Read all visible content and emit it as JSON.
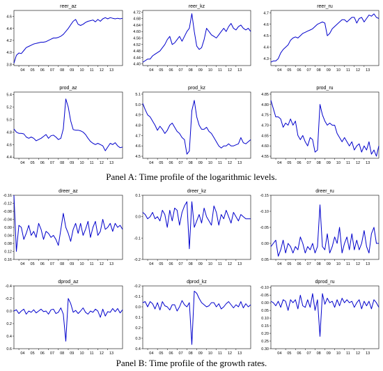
{
  "captions": {
    "panel_a": "Panel A: Time profile of the logarithmic levels.",
    "panel_b": "Panel B: Time profile of the growth rates."
  },
  "colors": {
    "line": "#0000cc",
    "frame": "#000000"
  },
  "chart_data": [
    {
      "type": "line",
      "title": "reer_az",
      "x_ticks": [
        "04",
        "05",
        "06",
        "07",
        "08",
        "09",
        "10",
        "11",
        "12",
        "13"
      ],
      "y_ticks": [
        "3.8",
        "4.0",
        "4.2",
        "4.4",
        "4.6"
      ],
      "ylim": [
        3.78,
        4.7
      ],
      "inverted": false,
      "values": [
        3.82,
        3.95,
        3.99,
        3.98,
        4.03,
        4.08,
        4.1,
        4.12,
        4.14,
        4.15,
        4.16,
        4.17,
        4.17,
        4.18,
        4.2,
        4.22,
        4.24,
        4.24,
        4.25,
        4.27,
        4.3,
        4.35,
        4.4,
        4.46,
        4.52,
        4.55,
        4.47,
        4.45,
        4.47,
        4.5,
        4.52,
        4.53,
        4.54,
        4.51,
        4.55,
        4.52,
        4.56,
        4.58,
        4.56,
        4.58,
        4.57,
        4.56,
        4.57,
        4.56,
        4.57
      ]
    },
    {
      "type": "line",
      "title": "reer_kz",
      "x_ticks": [
        "04",
        "05",
        "06",
        "07",
        "08",
        "09",
        "10",
        "11",
        "12",
        "13"
      ],
      "y_ticks": [
        "4.40",
        "4.44",
        "4.48",
        "4.52",
        "4.56",
        "4.60",
        "4.64",
        "4.68",
        "4.72"
      ],
      "ylim": [
        4.39,
        4.73
      ],
      "inverted": false,
      "values": [
        4.41,
        4.42,
        4.43,
        4.43,
        4.45,
        4.46,
        4.47,
        4.48,
        4.5,
        4.52,
        4.55,
        4.57,
        4.52,
        4.53,
        4.55,
        4.57,
        4.54,
        4.57,
        4.6,
        4.62,
        4.71,
        4.6,
        4.51,
        4.49,
        4.5,
        4.55,
        4.62,
        4.6,
        4.58,
        4.57,
        4.56,
        4.58,
        4.6,
        4.62,
        4.6,
        4.63,
        4.65,
        4.62,
        4.61,
        4.63,
        4.64,
        4.62,
        4.61,
        4.62,
        4.6
      ]
    },
    {
      "type": "line",
      "title": "reer_ru",
      "x_ticks": [
        "04",
        "05",
        "06",
        "07",
        "08",
        "09",
        "10",
        "11",
        "12",
        "13"
      ],
      "y_ticks": [
        "4.3",
        "4.4",
        "4.5",
        "4.6",
        "4.7"
      ],
      "ylim": [
        4.24,
        4.72
      ],
      "inverted": false,
      "values": [
        4.27,
        4.28,
        4.28,
        4.3,
        4.35,
        4.38,
        4.4,
        4.42,
        4.46,
        4.48,
        4.49,
        4.48,
        4.5,
        4.52,
        4.53,
        4.54,
        4.55,
        4.56,
        4.58,
        4.6,
        4.61,
        4.62,
        4.61,
        4.5,
        4.52,
        4.56,
        4.58,
        4.6,
        4.62,
        4.64,
        4.64,
        4.62,
        4.64,
        4.66,
        4.66,
        4.61,
        4.65,
        4.66,
        4.62,
        4.65,
        4.68,
        4.67,
        4.69,
        4.66,
        4.65
      ]
    },
    {
      "type": "line",
      "title": "prod_az",
      "x_ticks": [
        "04",
        "05",
        "06",
        "07",
        "08",
        "09",
        "10",
        "11",
        "12",
        "13"
      ],
      "y_ticks": [
        "4.4",
        "4.6",
        "4.8",
        "5.0",
        "5.2",
        "5.4"
      ],
      "ylim": [
        4.38,
        5.44
      ],
      "inverted": false,
      "values": [
        4.85,
        4.8,
        4.78,
        4.78,
        4.77,
        4.72,
        4.7,
        4.72,
        4.7,
        4.66,
        4.68,
        4.7,
        4.73,
        4.76,
        4.7,
        4.74,
        4.75,
        4.72,
        4.68,
        4.7,
        4.85,
        5.33,
        5.2,
        4.98,
        4.84,
        4.83,
        4.83,
        4.82,
        4.8,
        4.76,
        4.7,
        4.65,
        4.62,
        4.6,
        4.62,
        4.6,
        4.58,
        4.5,
        4.56,
        4.62,
        4.6,
        4.63,
        4.58,
        4.55,
        4.56
      ]
    },
    {
      "type": "line",
      "title": "prod_kz",
      "x_ticks": [
        "04",
        "05",
        "06",
        "07",
        "08",
        "09",
        "10",
        "11",
        "12",
        "13"
      ],
      "y_ticks": [
        "4.5",
        "4.6",
        "4.7",
        "4.8",
        "4.9",
        "5.0",
        "5.1"
      ],
      "ylim": [
        4.48,
        5.12
      ],
      "inverted": false,
      "values": [
        5.01,
        4.95,
        4.9,
        4.88,
        4.84,
        4.8,
        4.75,
        4.79,
        4.76,
        4.72,
        4.75,
        4.8,
        4.82,
        4.78,
        4.74,
        4.72,
        4.68,
        4.66,
        4.52,
        4.55,
        4.94,
        5.04,
        4.88,
        4.8,
        4.76,
        4.76,
        4.78,
        4.74,
        4.72,
        4.68,
        4.64,
        4.6,
        4.58,
        4.6,
        4.6,
        4.62,
        4.6,
        4.6,
        4.61,
        4.62,
        4.68,
        4.63,
        4.62,
        4.64,
        4.66
      ]
    },
    {
      "type": "line",
      "title": "prod_ru",
      "x_ticks": [
        "04",
        "05",
        "06",
        "07",
        "08",
        "09",
        "10",
        "11",
        "12",
        "13"
      ],
      "y_ticks": [
        "4.55",
        "4.60",
        "4.65",
        "4.70",
        "4.75",
        "4.80",
        "4.85"
      ],
      "ylim": [
        4.54,
        4.86
      ],
      "inverted": false,
      "values": [
        4.82,
        4.78,
        4.74,
        4.74,
        4.73,
        4.69,
        4.71,
        4.7,
        4.73,
        4.7,
        4.72,
        4.65,
        4.63,
        4.65,
        4.62,
        4.6,
        4.64,
        4.63,
        4.57,
        4.58,
        4.8,
        4.75,
        4.72,
        4.7,
        4.71,
        4.7,
        4.7,
        4.66,
        4.64,
        4.62,
        4.64,
        4.62,
        4.6,
        4.62,
        4.58,
        4.6,
        4.61,
        4.57,
        4.6,
        4.58,
        4.62,
        4.56,
        4.58,
        4.55,
        4.6
      ]
    },
    {
      "type": "line",
      "title": "dreer_az",
      "x_ticks": [
        "04",
        "05",
        "06",
        "07",
        "08",
        "09",
        "10",
        "11",
        "12",
        "13"
      ],
      "y_ticks": [
        "-0.16",
        "-0.12",
        "-0.08",
        "-0.04",
        "0.00",
        "0.04",
        "0.08",
        "0.12",
        "0.16"
      ],
      "ylim": [
        -0.16,
        0.16
      ],
      "inverted": true,
      "values": [
        -0.16,
        0.12,
        -0.01,
        0.0,
        0.06,
        0.03,
        -0.01,
        0.04,
        0.02,
        0.05,
        -0.02,
        0.01,
        0.06,
        0.02,
        0.03,
        0.05,
        0.04,
        0.06,
        0.09,
        0.01,
        -0.07,
        0.0,
        0.03,
        0.07,
        0.01,
        -0.02,
        0.03,
        -0.02,
        0.04,
        0.01,
        -0.03,
        0.05,
        0.0,
        -0.03,
        0.04,
        0.02,
        -0.04,
        0.01,
        0.0,
        -0.02,
        0.02,
        -0.02,
        0.0,
        -0.01,
        0.01
      ]
    },
    {
      "type": "line",
      "title": "dreer_kz",
      "x_ticks": [
        "04",
        "05",
        "06",
        "07",
        "08",
        "09",
        "10",
        "11",
        "12",
        "13"
      ],
      "y_ticks": [
        "0.1",
        "0.0",
        "-0.1",
        "-0.2"
      ],
      "ylim": [
        -0.2,
        0.1
      ],
      "inverted": false,
      "values": [
        0.02,
        0.01,
        -0.01,
        0.0,
        0.02,
        -0.01,
        0.0,
        -0.02,
        0.03,
        0.01,
        -0.05,
        0.03,
        -0.02,
        0.04,
        0.03,
        -0.04,
        0.02,
        0.05,
        0.07,
        -0.15,
        0.07,
        -0.05,
        -0.02,
        0.01,
        -0.03,
        0.04,
        0.0,
        -0.02,
        -0.04,
        0.05,
        0.02,
        -0.04,
        0.01,
        -0.01,
        0.03,
        0.0,
        -0.03,
        0.02,
        0.0,
        -0.02,
        0.01,
        0.0,
        -0.01,
        -0.01,
        -0.01
      ]
    },
    {
      "type": "line",
      "title": "dreer_ru",
      "x_ticks": [
        "04",
        "05",
        "06",
        "07",
        "08",
        "09",
        "10",
        "11",
        "12",
        "13"
      ],
      "y_ticks": [
        "-0.15",
        "-0.10",
        "-0.05",
        "0.00",
        "0.05"
      ],
      "ylim": [
        -0.15,
        0.05
      ],
      "inverted": true,
      "values": [
        0.01,
        0.0,
        -0.01,
        0.04,
        0.02,
        -0.01,
        0.03,
        0.0,
        0.01,
        0.03,
        0.01,
        0.02,
        -0.02,
        0.0,
        0.03,
        0.01,
        0.02,
        0.0,
        0.03,
        0.01,
        -0.12,
        0.01,
        0.02,
        -0.03,
        0.03,
        0.01,
        -0.02,
        0.0,
        -0.05,
        0.03,
        0.0,
        -0.02,
        0.02,
        -0.03,
        0.02,
        -0.01,
        0.02,
        0.0,
        -0.04,
        0.01,
        0.03,
        -0.03,
        -0.05,
        0.0,
        0.0
      ]
    },
    {
      "type": "line",
      "title": "dprod_az",
      "x_ticks": [
        "04",
        "05",
        "06",
        "07",
        "08",
        "09",
        "10",
        "11",
        "12",
        "13"
      ],
      "y_ticks": [
        "-0.4",
        "-0.2",
        "0.0",
        "0.2",
        "0.4",
        "0.6"
      ],
      "ylim": [
        -0.4,
        0.6
      ],
      "inverted": true,
      "values": [
        0.0,
        -0.02,
        0.04,
        0.0,
        -0.03,
        0.05,
        0.0,
        0.02,
        -0.02,
        0.03,
        0.0,
        -0.03,
        0.01,
        0.0,
        0.05,
        -0.02,
        -0.03,
        0.04,
        0.02,
        -0.05,
        0.05,
        0.48,
        -0.2,
        -0.12,
        0.02,
        -0.01,
        0.04,
        0.0,
        -0.05,
        0.02,
        0.05,
        0.0,
        0.02,
        -0.03,
        0.0,
        0.1,
        -0.03,
        0.08,
        0.01,
        0.02,
        -0.04,
        0.01,
        -0.04,
        0.03,
        -0.02
      ]
    },
    {
      "type": "line",
      "title": "dprod_kz",
      "x_ticks": [
        "04",
        "05",
        "06",
        "07",
        "08",
        "09",
        "10",
        "11",
        "12",
        "13"
      ],
      "y_ticks": [
        "-0.2",
        "-0.1",
        "0.0",
        "0.1",
        "0.2",
        "0.3",
        "0.4"
      ],
      "ylim": [
        -0.2,
        0.4
      ],
      "inverted": true,
      "values": [
        -0.04,
        -0.05,
        0.0,
        -0.05,
        -0.03,
        0.02,
        -0.04,
        0.03,
        -0.05,
        -0.01,
        0.0,
        0.03,
        -0.02,
        -0.02,
        0.04,
        0.0,
        -0.06,
        -0.02,
        0.0,
        -0.04,
        0.36,
        -0.15,
        -0.13,
        -0.08,
        -0.04,
        -0.02,
        0.0,
        -0.01,
        -0.04,
        -0.04,
        0.0,
        -0.03,
        0.02,
        0.0,
        -0.03,
        -0.05,
        -0.02,
        0.01,
        -0.02,
        0.0,
        -0.05,
        0.01,
        -0.03,
        0.0,
        -0.02
      ]
    },
    {
      "type": "line",
      "title": "dprod_ru",
      "x_ticks": [
        "04",
        "05",
        "06",
        "07",
        "08",
        "09",
        "10",
        "11",
        "12",
        "13"
      ],
      "y_ticks": [
        "-0.10",
        "-0.05",
        "0.00",
        "0.05",
        "0.10",
        "0.15",
        "0.20",
        "0.25",
        "0.30"
      ],
      "ylim": [
        -0.11,
        0.3
      ],
      "inverted": true,
      "values": [
        -0.01,
        0.0,
        0.02,
        -0.01,
        0.03,
        -0.02,
        -0.01,
        0.05,
        -0.02,
        0.0,
        -0.02,
        0.04,
        -0.05,
        0.02,
        0.03,
        -0.02,
        0.03,
        -0.06,
        0.05,
        -0.02,
        0.22,
        -0.06,
        0.01,
        -0.03,
        0.0,
        -0.01,
        0.03,
        -0.02,
        0.02,
        -0.03,
        0.0,
        -0.02,
        0.0,
        -0.01,
        0.03,
        0.0,
        -0.02,
        0.04,
        -0.01,
        0.02,
        -0.01,
        0.04,
        -0.02,
        0.0,
        0.03
      ]
    }
  ]
}
